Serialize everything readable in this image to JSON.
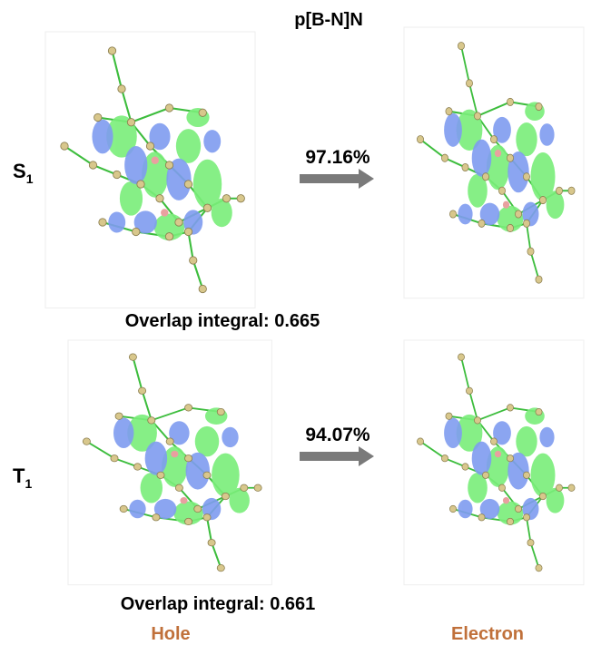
{
  "title": "p[B-N]N",
  "rows": [
    {
      "state": {
        "letter": "S",
        "subscript": "1"
      },
      "percent": "97.16%",
      "overlap": "Overlap integral: 0.665"
    },
    {
      "state": {
        "letter": "T",
        "subscript": "1"
      },
      "percent": "94.07%",
      "overlap": "Overlap integral: 0.661"
    }
  ],
  "columns": {
    "left": "Hole",
    "right": "Electron"
  }
}
